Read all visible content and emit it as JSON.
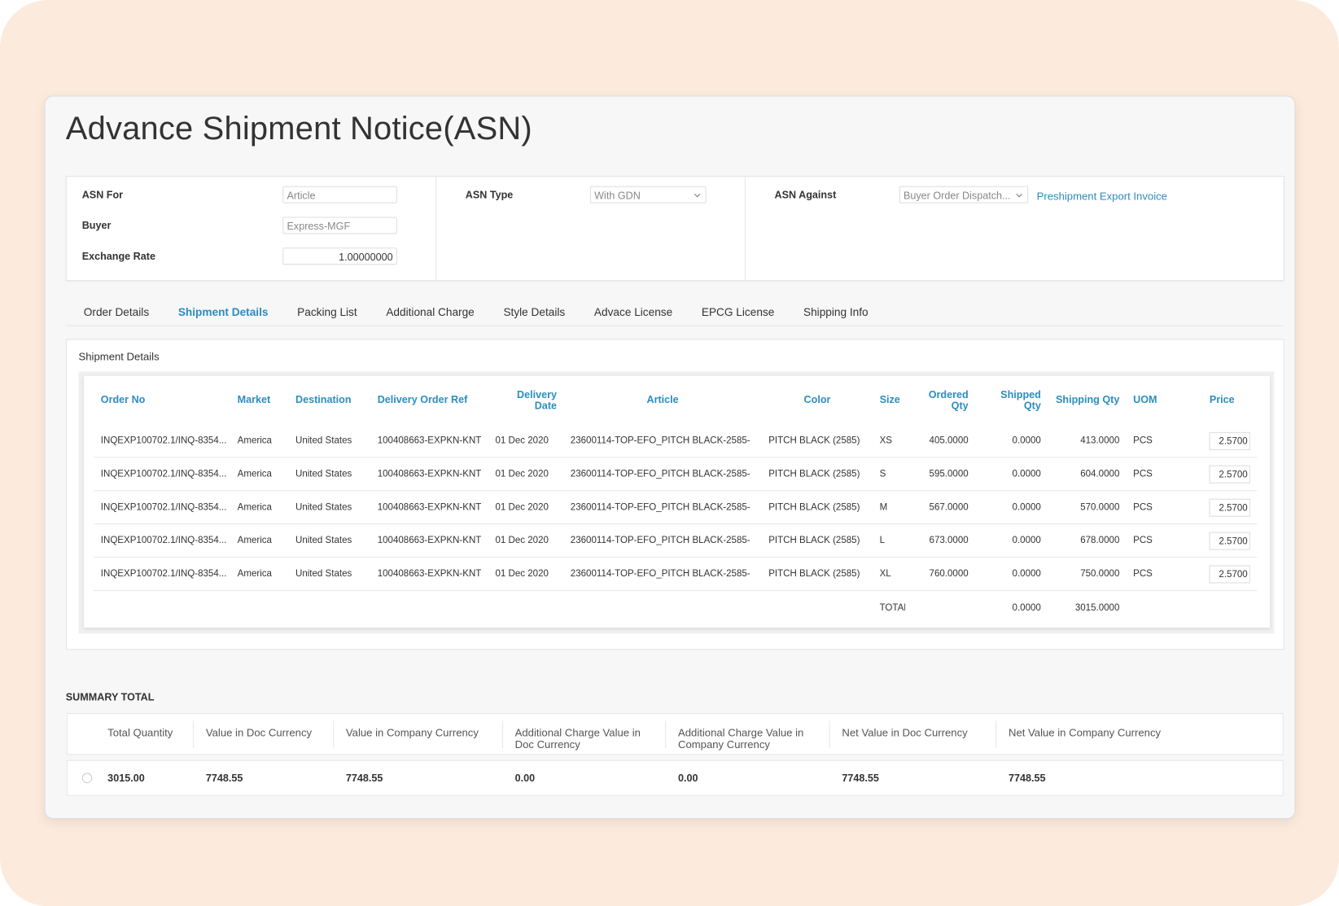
{
  "header": {
    "title": "Advance Shipment Notice(ASN)"
  },
  "form": {
    "left": [
      {
        "label": "ASN For",
        "value": "Article"
      },
      {
        "label": "Buyer",
        "value": "Express-MGF"
      },
      {
        "label": "Exchange Rate",
        "value": "1.00000000"
      }
    ],
    "asn_type": {
      "label": "ASN Type",
      "value": "With GDN"
    },
    "asn_against": {
      "label": "ASN Against",
      "value": "Buyer Order Dispatch...",
      "link": "Preshipment Export Invoice"
    }
  },
  "tabs": {
    "items": [
      "Order Details",
      "Shipment Details",
      "Packing List",
      "Additional Charge",
      "Style Details",
      "Advace License",
      "EPCG License",
      "Shipping Info"
    ],
    "active": "Shipment Details"
  },
  "section": {
    "title": "Shipment Details"
  },
  "table": {
    "columns": [
      "Order No",
      "Market",
      "Destination",
      "Delivery Order Ref",
      "Delivery Date",
      "Article",
      "Color",
      "Size",
      "Ordered Qty",
      "Shipped Qty",
      "Shipping Qty",
      "UOM",
      "Price"
    ],
    "rows": [
      [
        "INQEXP100702.1/INQ-8354...",
        "America",
        "United States",
        "100408663-EXPKN-KNT",
        "01 Dec 2020",
        "23600114-TOP-EFO_PITCH BLACK-2585-",
        "PITCH BLACK (2585)",
        "XS",
        "405.0000",
        "0.0000",
        "413.0000",
        "PCS",
        "2.5700"
      ],
      [
        "INQEXP100702.1/INQ-8354...",
        "America",
        "United States",
        "100408663-EXPKN-KNT",
        "01 Dec 2020",
        "23600114-TOP-EFO_PITCH BLACK-2585-",
        "PITCH BLACK (2585)",
        "S",
        "595.0000",
        "0.0000",
        "604.0000",
        "PCS",
        "2.5700"
      ],
      [
        "INQEXP100702.1/INQ-8354...",
        "America",
        "United States",
        "100408663-EXPKN-KNT",
        "01 Dec 2020",
        "23600114-TOP-EFO_PITCH BLACK-2585-",
        "PITCH BLACK (2585)",
        "M",
        "567.0000",
        "0.0000",
        "570.0000",
        "PCS",
        "2.5700"
      ],
      [
        "INQEXP100702.1/INQ-8354...",
        "America",
        "United States",
        "100408663-EXPKN-KNT",
        "01 Dec 2020",
        "23600114-TOP-EFO_PITCH BLACK-2585-",
        "PITCH BLACK (2585)",
        "L",
        "673.0000",
        "0.0000",
        "678.0000",
        "PCS",
        "2.5700"
      ],
      [
        "INQEXP100702.1/INQ-8354...",
        "America",
        "United States",
        "100408663-EXPKN-KNT",
        "01 Dec 2020",
        "23600114-TOP-EFO_PITCH BLACK-2585-",
        "PITCH BLACK (2585)",
        "XL",
        "760.0000",
        "0.0000",
        "750.0000",
        "PCS",
        "2.5700"
      ]
    ],
    "total": {
      "label": "TOTAL",
      "shipped": "0.0000",
      "shipping": "3015.0000"
    }
  },
  "summary": {
    "title": "SUMMARY TOTAL",
    "headers": [
      "Total Quantity",
      "Value in Doc Currency",
      "Value in Company Currency",
      "Additional Charge Value in Doc Currency",
      "Additional Charge Value in Company Currency",
      "Net Value in Doc Currency",
      "Net Value in Company Currency"
    ],
    "values": [
      "3015.00",
      "7748.55",
      "7748.55",
      "0.00",
      "0.00",
      "7748.55",
      "7748.55"
    ]
  }
}
